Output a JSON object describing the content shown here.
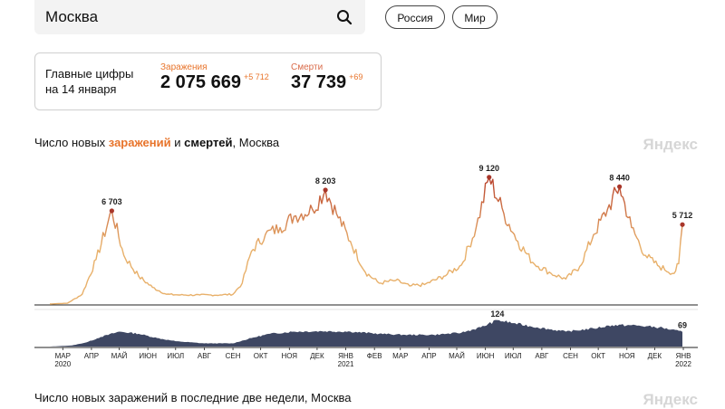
{
  "search": {
    "query": "Москва"
  },
  "filters": [
    {
      "label": "Россия"
    },
    {
      "label": "Мир"
    }
  ],
  "summary": {
    "label_line1": "Главные цифры",
    "label_line2": "на 14 января",
    "cases": {
      "caption": "Заражения",
      "value": "2 075 669",
      "delta": "+5 712"
    },
    "deaths": {
      "caption": "Смерти",
      "value": "37 739",
      "delta": "+69"
    }
  },
  "chart1": {
    "title_pre": "Число новых ",
    "title_cases": "заражений",
    "title_mid": " и ",
    "title_deaths": "смертей",
    "title_post": ", Москва",
    "watermark": "Яндекс"
  },
  "chart2": {
    "title": "Число новых заражений в последние две недели, Москва",
    "watermark": "Яндекс"
  },
  "colors": {
    "accent": "#e8742b",
    "cases_low": "#e8b06a",
    "cases_high": "#b8402a",
    "deaths": "#3e4763"
  },
  "chart_data": [
    {
      "type": "line",
      "series": [
        {
          "name": "заражения"
        }
      ],
      "x_start": "2020-03-01",
      "x_end": "2022-01-14",
      "points": [
        [
          "2020-03-01",
          0
        ],
        [
          "2020-03-20",
          60
        ],
        [
          "2020-04-05",
          700
        ],
        [
          "2020-04-20",
          3200
        ],
        [
          "2020-05-07",
          6703
        ],
        [
          "2020-05-20",
          3500
        ],
        [
          "2020-06-05",
          2000
        ],
        [
          "2020-06-20",
          1200
        ],
        [
          "2020-07-05",
          700
        ],
        [
          "2020-07-20",
          650
        ],
        [
          "2020-08-10",
          650
        ],
        [
          "2020-09-01",
          650
        ],
        [
          "2020-09-15",
          700
        ],
        [
          "2020-09-25",
          1500
        ],
        [
          "2020-10-05",
          3800
        ],
        [
          "2020-10-20",
          5000
        ],
        [
          "2020-11-05",
          5500
        ],
        [
          "2020-11-20",
          6300
        ],
        [
          "2020-12-10",
          6800
        ],
        [
          "2020-12-24",
          8203
        ],
        [
          "2021-01-05",
          6500
        ],
        [
          "2021-01-20",
          4500
        ],
        [
          "2021-02-05",
          2300
        ],
        [
          "2021-02-20",
          1500
        ],
        [
          "2021-03-10",
          1700
        ],
        [
          "2021-03-25",
          1300
        ],
        [
          "2021-04-10",
          1400
        ],
        [
          "2021-05-01",
          2000
        ],
        [
          "2021-05-20",
          2800
        ],
        [
          "2021-06-05",
          5500
        ],
        [
          "2021-06-19",
          9120
        ],
        [
          "2021-07-05",
          6500
        ],
        [
          "2021-07-20",
          4500
        ],
        [
          "2021-08-05",
          3000
        ],
        [
          "2021-08-25",
          2200
        ],
        [
          "2021-09-10",
          1800
        ],
        [
          "2021-09-25",
          2700
        ],
        [
          "2021-10-10",
          5000
        ],
        [
          "2021-10-25",
          6800
        ],
        [
          "2021-11-07",
          8440
        ],
        [
          "2021-11-20",
          5500
        ],
        [
          "2021-12-05",
          3500
        ],
        [
          "2021-12-20",
          2700
        ],
        [
          "2022-01-05",
          2200
        ],
        [
          "2022-01-10",
          2900
        ],
        [
          "2022-01-14",
          5712
        ]
      ],
      "annotations": [
        {
          "date": "2020-05-07",
          "text": "6 703"
        },
        {
          "date": "2020-12-24",
          "text": "8 203"
        },
        {
          "date": "2021-06-19",
          "text": "9 120"
        },
        {
          "date": "2021-11-07",
          "text": "8 440"
        },
        {
          "date": "2022-01-14",
          "text": "5 712"
        }
      ],
      "ylim": [
        0,
        9500
      ]
    },
    {
      "type": "area",
      "series": [
        {
          "name": "смерти"
        }
      ],
      "points": [
        [
          "2020-03-01",
          0
        ],
        [
          "2020-03-25",
          5
        ],
        [
          "2020-04-10",
          20
        ],
        [
          "2020-04-25",
          45
        ],
        [
          "2020-05-15",
          70
        ],
        [
          "2020-06-05",
          60
        ],
        [
          "2020-06-25",
          40
        ],
        [
          "2020-07-15",
          25
        ],
        [
          "2020-08-15",
          15
        ],
        [
          "2020-09-15",
          15
        ],
        [
          "2020-10-05",
          40
        ],
        [
          "2020-10-25",
          60
        ],
        [
          "2020-11-20",
          70
        ],
        [
          "2020-12-20",
          72
        ],
        [
          "2021-01-20",
          70
        ],
        [
          "2021-02-20",
          60
        ],
        [
          "2021-03-20",
          55
        ],
        [
          "2021-04-20",
          55
        ],
        [
          "2021-05-20",
          65
        ],
        [
          "2021-06-10",
          90
        ],
        [
          "2021-06-28",
          124
        ],
        [
          "2021-07-15",
          110
        ],
        [
          "2021-08-10",
          90
        ],
        [
          "2021-09-10",
          70
        ],
        [
          "2021-10-10",
          85
        ],
        [
          "2021-10-30",
          100
        ],
        [
          "2021-11-20",
          100
        ],
        [
          "2021-12-20",
          90
        ],
        [
          "2022-01-14",
          69
        ]
      ],
      "annotations": [
        {
          "date": "2021-06-28",
          "text": "124"
        },
        {
          "date": "2022-01-14",
          "text": "69"
        }
      ],
      "ylim": [
        0,
        140
      ]
    }
  ],
  "axis": {
    "months": [
      {
        "date": "2020-03-15",
        "label": "МАР",
        "sub": "2020"
      },
      {
        "date": "2020-04-15",
        "label": "АПР"
      },
      {
        "date": "2020-05-15",
        "label": "МАЙ"
      },
      {
        "date": "2020-06-15",
        "label": "ИЮН"
      },
      {
        "date": "2020-07-15",
        "label": "ИЮЛ"
      },
      {
        "date": "2020-08-15",
        "label": "АВГ"
      },
      {
        "date": "2020-09-15",
        "label": "СЕН"
      },
      {
        "date": "2020-10-15",
        "label": "ОКТ"
      },
      {
        "date": "2020-11-15",
        "label": "НОЯ"
      },
      {
        "date": "2020-12-15",
        "label": "ДЕК"
      },
      {
        "date": "2021-01-15",
        "label": "ЯНВ",
        "sub": "2021"
      },
      {
        "date": "2021-02-15",
        "label": "ФЕВ"
      },
      {
        "date": "2021-03-15",
        "label": "МАР"
      },
      {
        "date": "2021-04-15",
        "label": "АПР"
      },
      {
        "date": "2021-05-15",
        "label": "МАЙ"
      },
      {
        "date": "2021-06-15",
        "label": "ИЮН"
      },
      {
        "date": "2021-07-15",
        "label": "ИЮЛ"
      },
      {
        "date": "2021-08-15",
        "label": "АВГ"
      },
      {
        "date": "2021-09-15",
        "label": "СЕН"
      },
      {
        "date": "2021-10-15",
        "label": "ОКТ"
      },
      {
        "date": "2021-11-15",
        "label": "НОЯ"
      },
      {
        "date": "2021-12-15",
        "label": "ДЕК"
      },
      {
        "date": "2022-01-15",
        "label": "ЯНВ",
        "sub": "2022"
      }
    ]
  }
}
